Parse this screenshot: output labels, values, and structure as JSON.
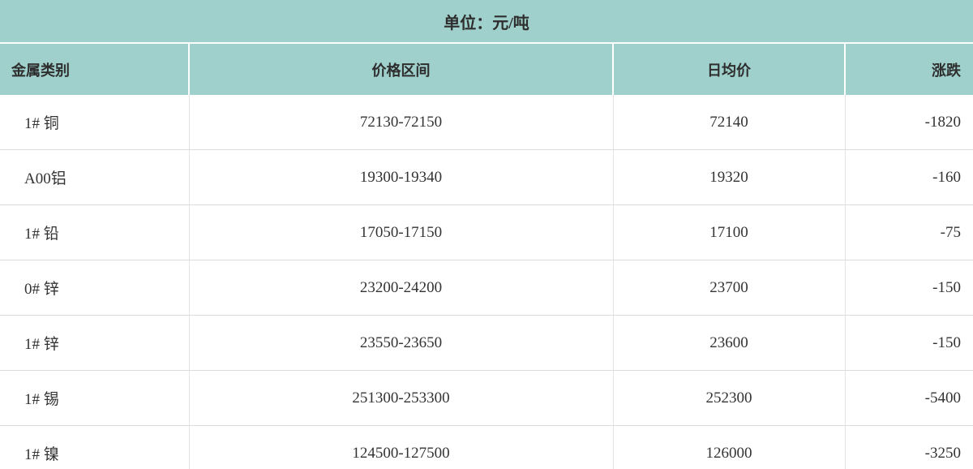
{
  "unit_banner": {
    "label": "单位：元/吨"
  },
  "chart_data": {
    "type": "table",
    "title": "单位：元/吨",
    "columns": [
      "金属类别",
      "价格区间",
      "日均价",
      "涨跌"
    ],
    "rows": [
      [
        "1# 铜",
        "72130-72150",
        "72140",
        "-1820"
      ],
      [
        "A00铝",
        "19300-19340",
        "19320",
        "-160"
      ],
      [
        "1# 铅",
        "17050-17150",
        "17100",
        "-75"
      ],
      [
        "0# 锌",
        "23200-24200",
        "23700",
        "-150"
      ],
      [
        "1# 锌",
        "23550-23650",
        "23600",
        "-150"
      ],
      [
        "1# 锡",
        "251300-253300",
        "252300",
        "-5400"
      ],
      [
        "1# 镍",
        "124500-127500",
        "126000",
        "-3250"
      ]
    ],
    "layout": {
      "column_alignments": [
        "left",
        "center",
        "center",
        "right"
      ],
      "last_row_clipped": true
    }
  },
  "colors": {
    "header_bg": "#9fd0cb",
    "row_bg": "#ffffff",
    "text": "#303030",
    "row_border": "#dcdcdc",
    "column_divider_body": "#e3e3e3",
    "column_divider_header": "#ffffff"
  }
}
